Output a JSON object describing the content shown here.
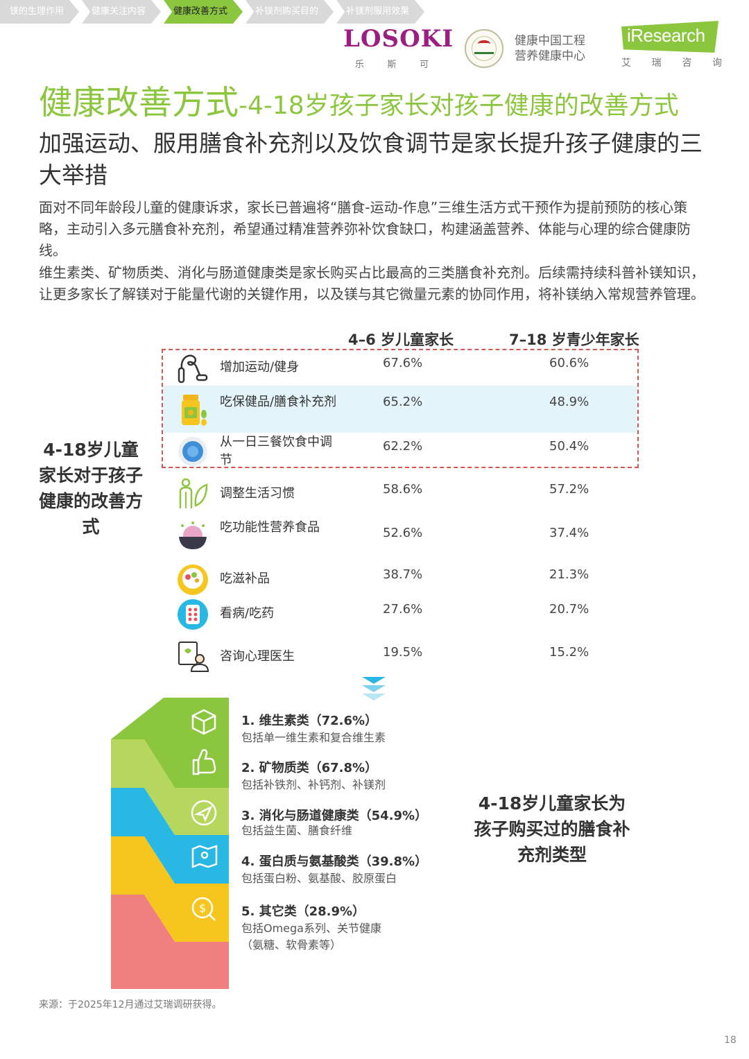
{
  "breadcrumb": [
    {
      "label": "镁的生理作用",
      "active": false
    },
    {
      "label": "健康关注内容",
      "active": false
    },
    {
      "label": "健康改善方式",
      "active": true
    },
    {
      "label": "补镁剂购买目的",
      "active": false
    },
    {
      "label": "补镁剂服用效果",
      "active": false
    }
  ],
  "header": {
    "losoki": {
      "word": "LOSOKI",
      "sub": [
        "乐",
        "斯",
        "可"
      ]
    },
    "org": {
      "line1": "健康中国工程",
      "line2": "营养健康中心"
    },
    "iresearch": {
      "word": "iResearch",
      "sub": [
        "艾",
        "瑞",
        "咨",
        "询"
      ]
    }
  },
  "title": {
    "main": "健康改善方式",
    "rest": "-4-18岁孩子家长对孩子健康的改善方式"
  },
  "subtitle": "加强运动、服用膳食补充剂以及饮食调节是家长提升孩子健康的三大举措",
  "paragraphs": [
    "面对不同年龄段儿童的健康诉求，家长已普遍将“膳食-运动-作息”三维生活方式干预作为提前预防的核心策略，主动引入多元膳食补充剂，希望通过精准营养弥补饮食缺口，构建涵盖营养、体能与心理的综合健康防线。",
    "维生素类、矿物质类、消化与肠道健康类是家长购买占比最高的三类膳食补充剂。后续需持续科普补镁知识，让更多家长了解镁对于能量代谢的关键作用，以及镁与其它微量元素的协同作用，将补镁纳入常规营养管理。"
  ],
  "table": {
    "col1_header": "4–6 岁儿童家长",
    "col2_header": "7–18 岁青少年家长",
    "side_label": "4-18岁儿童家长对于孩子健康的改善方式",
    "rows": [
      {
        "label": "增加运动/健身",
        "v1": "67.6%",
        "v2": "60.6%",
        "icon": "jump-rope-icon"
      },
      {
        "label": "吃保健品/膳食补充剂",
        "v1": "65.2%",
        "v2": "48.9%",
        "icon": "supplement-bottle-icon"
      },
      {
        "label": "从一日三餐饮食中调节",
        "v1": "62.2%",
        "v2": "50.4%",
        "icon": "meal-plate-icon"
      },
      {
        "label": "调整生活习惯",
        "v1": "58.6%",
        "v2": "57.2%",
        "icon": "lifestyle-icon"
      },
      {
        "label": "吃功能性营养食品",
        "v1": "52.6%",
        "v2": "37.4%",
        "icon": "functional-food-bowl-icon"
      },
      {
        "label": "吃滋补品",
        "v1": "38.7%",
        "v2": "21.3%",
        "icon": "tonic-bowl-icon"
      },
      {
        "label": "看病/吃药",
        "v1": "27.6%",
        "v2": "20.7%",
        "icon": "pill-pack-icon"
      },
      {
        "label": "咨询心理医生",
        "v1": "19.5%",
        "v2": "15.2%",
        "icon": "psychologist-icon"
      }
    ]
  },
  "supplements": {
    "side_label": "4-18岁儿童家长为孩子购买过的膳食补充剂类型",
    "items": [
      {
        "title": "1. 维生素类（72.6%）",
        "desc": "包括单一维生素和复合维生素",
        "color": "#8cc63f",
        "icon": "cube-icon"
      },
      {
        "title": "2. 矿物质类（67.8%）",
        "desc": "包括补铁剂、补钙剂、补镁剂",
        "color": "#b6d65e",
        "icon": "thumbs-up-icon"
      },
      {
        "title": "3. 消化与肠道健康类（54.9%）",
        "desc": "包括益生菌、膳食纤维",
        "color": "#29b7e3",
        "icon": "paper-plane-icon"
      },
      {
        "title": "4. 蛋白质与氨基酸类（39.8%）",
        "desc": "包括蛋白粉、氨基酸、胶原蛋白",
        "color": "#f7c61e",
        "icon": "map-pin-icon"
      },
      {
        "title": "5. 其它类（28.9%）",
        "desc": "包括Omega系列、关节健康（氨糖、软骨素等）",
        "color": "#f08080",
        "icon": "dollar-search-icon"
      }
    ]
  },
  "source": "来源：于2025年12月通过艾瑞调研获得。",
  "page_number": "18",
  "colors": {
    "accent_green": "#8cc63f",
    "highlight_blue": "#e4f4fb",
    "dash_red": "#d9534f",
    "brand_purple": "#9b1f83"
  }
}
